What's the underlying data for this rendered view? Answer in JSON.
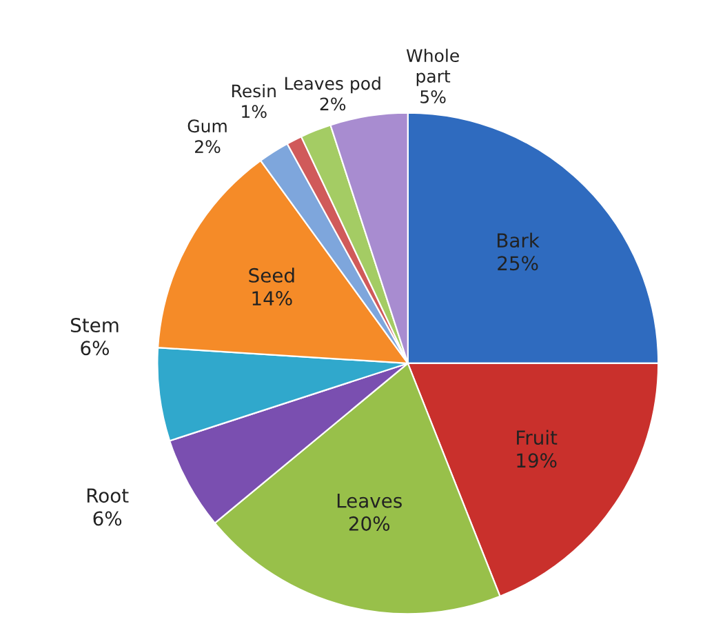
{
  "chart_data": {
    "type": "pie",
    "categories": [
      "Bark",
      "Fruit",
      "Leaves",
      "Root",
      "Stem",
      "Seed",
      "Gum",
      "Resin",
      "Leaves pod",
      "Whole\npart"
    ],
    "values": [
      25,
      19,
      20,
      6,
      6,
      14,
      2,
      1,
      2,
      5
    ],
    "value_labels": [
      "25%",
      "19%",
      "20%",
      "6%",
      "6%",
      "14%",
      "2%",
      "1%",
      "2%",
      "5%"
    ],
    "colors": [
      "#2f6bbf",
      "#c9302c",
      "#98c04a",
      "#7a4fb0",
      "#30a8cc",
      "#f58b28",
      "#7ea6dc",
      "#d05a5a",
      "#a4cc64",
      "#a88cd0"
    ],
    "legend": false
  }
}
